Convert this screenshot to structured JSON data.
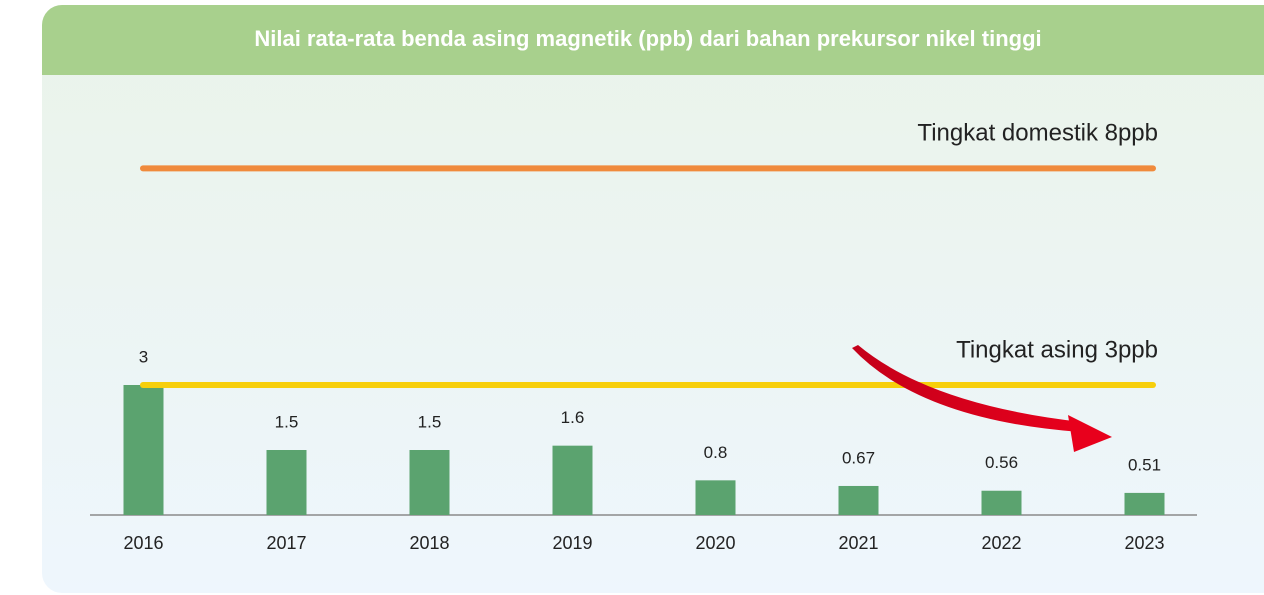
{
  "chart_data": {
    "type": "bar",
    "title": "Nilai rata-rata benda asing magnetik (ppb) dari bahan prekursor nikel tinggi",
    "categories": [
      "2016",
      "2017",
      "2018",
      "2019",
      "2020",
      "2021",
      "2022",
      "2023"
    ],
    "values": [
      3,
      1.5,
      1.5,
      1.6,
      0.8,
      0.67,
      0.56,
      0.51
    ],
    "color": "#5ba36f",
    "ylim": [
      0,
      9
    ],
    "reference_lines": [
      {
        "label": "Tingkat domestik 8ppb",
        "value": 8,
        "color": "#f08a3c"
      },
      {
        "label": "Tingkat asing 3ppb",
        "value": 3,
        "color": "#f7cf0c"
      }
    ]
  }
}
